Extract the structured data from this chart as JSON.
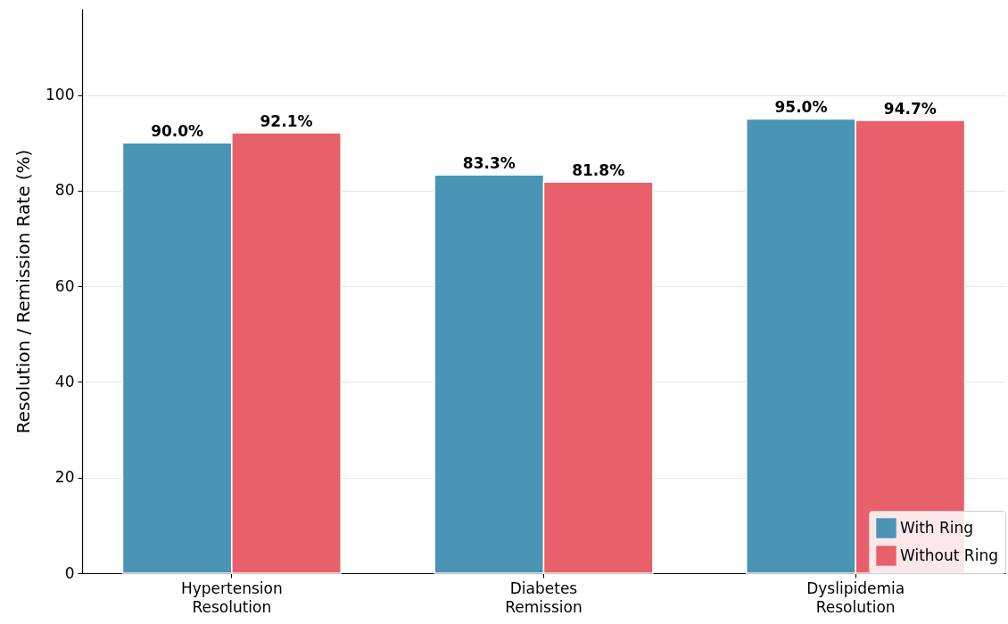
{
  "chart_data": {
    "type": "bar",
    "ylabel": "Resolution / Remission Rate (%)",
    "categories": [
      "Hypertension Resolution",
      "Diabetes Remission",
      "Dyslipidemia Resolution"
    ],
    "series": [
      {
        "name": "With Ring",
        "color": "#4a94b5",
        "values": [
          90.0,
          83.3,
          95.0
        ],
        "value_labels": [
          "90.0%",
          "83.3%",
          "95.0%"
        ]
      },
      {
        "name": "Without Ring",
        "color": "#e8606a",
        "values": [
          92.1,
          81.8,
          94.7
        ],
        "value_labels": [
          "92.1%",
          "81.8%",
          "94.7%"
        ]
      }
    ],
    "ylim": [
      0,
      118
    ],
    "yticks": [
      0,
      20,
      40,
      60,
      80,
      100
    ],
    "grid": "y",
    "legend": "bottom right"
  }
}
